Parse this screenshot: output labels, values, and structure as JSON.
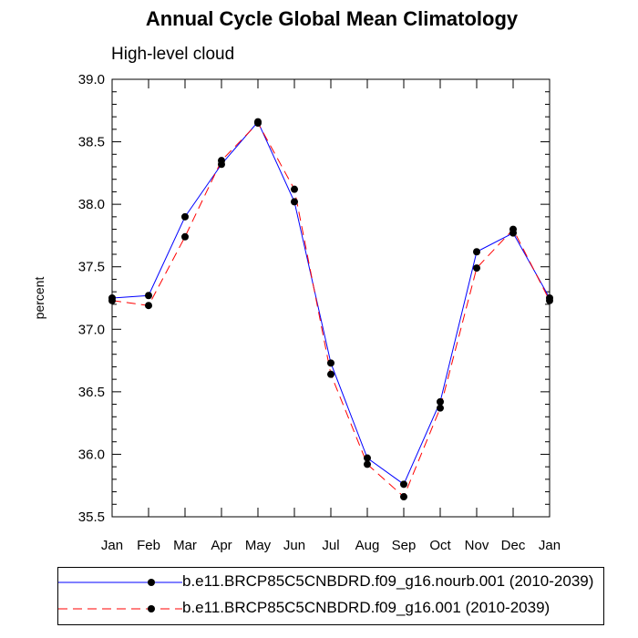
{
  "chart_data": {
    "type": "line",
    "title": "Annual Cycle Global Mean Climatology",
    "subtitle": "High-level cloud",
    "xlabel": "",
    "ylabel": "percent",
    "categories": [
      "Jan",
      "Feb",
      "Mar",
      "Apr",
      "May",
      "Jun",
      "Jul",
      "Aug",
      "Sep",
      "Oct",
      "Nov",
      "Dec",
      "Jan"
    ],
    "ylim": [
      35.5,
      39.0
    ],
    "yticks": [
      35.5,
      36.0,
      36.5,
      37.0,
      37.5,
      38.0,
      38.5,
      39.0
    ],
    "ytick_labels": [
      "35.5",
      "36.0",
      "36.5",
      "37.0",
      "37.5",
      "38.0",
      "38.5",
      "39.0"
    ],
    "series": [
      {
        "name": "b.e11.BRCP85C5CNBDRD.f09_g16.nourb.001 (2010-2039)",
        "color": "#0000ff",
        "style": "solid",
        "values": [
          37.25,
          37.27,
          37.9,
          38.32,
          38.66,
          38.02,
          36.73,
          35.97,
          35.76,
          36.42,
          37.62,
          37.77,
          37.25
        ]
      },
      {
        "name": "b.e11.BRCP85C5CNBDRD.f09_g16.001 (2010-2039)",
        "color": "#ff0000",
        "style": "dashed",
        "values": [
          37.23,
          37.19,
          37.74,
          38.35,
          38.65,
          38.12,
          36.64,
          35.92,
          35.66,
          36.37,
          37.49,
          37.8,
          37.23
        ]
      }
    ]
  }
}
